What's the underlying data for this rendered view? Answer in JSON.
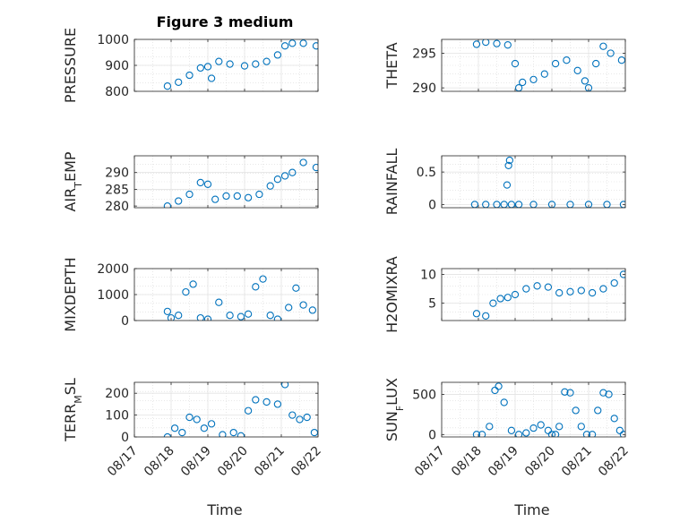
{
  "figure": {
    "title": "Figure 3 medium",
    "xlabel": "Time",
    "marker_color": "#0072BD"
  },
  "chart_data": [
    {
      "type": "scatter",
      "ylabel": "PRESSURE",
      "ylabel_parts": [
        {
          "t": "PRESSURE"
        }
      ],
      "xlim": [
        0,
        5
      ],
      "ylim": [
        800,
        1000
      ],
      "yticks": [
        800,
        900,
        1000
      ],
      "xticks": [
        0,
        1,
        2,
        3,
        4,
        5
      ],
      "xticklabels": [
        "08/17",
        "08/18",
        "08/19",
        "08/20",
        "08/21",
        "08/22"
      ],
      "grid": true,
      "x": [
        0.9,
        1.2,
        1.5,
        1.8,
        2.0,
        2.1,
        2.3,
        2.6,
        3.0,
        3.3,
        3.6,
        3.9,
        4.1,
        4.3,
        4.6,
        4.95
      ],
      "y": [
        820,
        835,
        862,
        890,
        895,
        850,
        915,
        905,
        898,
        905,
        915,
        940,
        975,
        985,
        985,
        975
      ]
    },
    {
      "type": "scatter",
      "ylabel": "THETA",
      "ylabel_parts": [
        {
          "t": "THETA"
        }
      ],
      "xlim": [
        0,
        5
      ],
      "ylim": [
        289.5,
        297
      ],
      "yticks": [
        290,
        295
      ],
      "xticks": [
        0,
        1,
        2,
        3,
        4,
        5
      ],
      "xticklabels": [
        "08/17",
        "08/18",
        "08/19",
        "08/20",
        "08/21",
        "08/22"
      ],
      "grid": true,
      "x": [
        0.95,
        1.2,
        1.5,
        1.8,
        2.0,
        2.1,
        2.2,
        2.5,
        2.8,
        3.1,
        3.4,
        3.7,
        3.9,
        4.0,
        4.2,
        4.4,
        4.6,
        4.9
      ],
      "y": [
        296.3,
        296.6,
        296.4,
        296.2,
        293.5,
        290.0,
        290.8,
        291.2,
        292.0,
        293.5,
        294.0,
        292.5,
        291.0,
        290.0,
        293.5,
        296.0,
        295.0,
        294.0
      ]
    },
    {
      "type": "scatter",
      "ylabel": "AIR_TEMP",
      "ylabel_parts": [
        {
          "t": "AIR"
        },
        {
          "t": "T",
          "sub": true
        },
        {
          "t": "EMP"
        }
      ],
      "xlim": [
        0,
        5
      ],
      "ylim": [
        279.5,
        295
      ],
      "yticks": [
        280,
        285,
        290
      ],
      "xticks": [
        0,
        1,
        2,
        3,
        4,
        5
      ],
      "xticklabels": [
        "08/17",
        "08/18",
        "08/19",
        "08/20",
        "08/21",
        "08/22"
      ],
      "grid": true,
      "x": [
        0.9,
        1.2,
        1.5,
        1.8,
        2.0,
        2.2,
        2.5,
        2.8,
        3.1,
        3.4,
        3.7,
        3.9,
        4.1,
        4.3,
        4.6,
        4.95
      ],
      "y": [
        280.0,
        281.5,
        283.5,
        287.0,
        286.5,
        282.0,
        283.0,
        283.0,
        282.5,
        283.5,
        286.0,
        288.0,
        289.0,
        290.0,
        293.0,
        291.5
      ]
    },
    {
      "type": "scatter",
      "ylabel": "RAINFALL",
      "ylabel_parts": [
        {
          "t": "RAINFALL"
        }
      ],
      "xlim": [
        0,
        5
      ],
      "ylim": [
        -0.05,
        0.75
      ],
      "yticks": [
        0,
        0.5
      ],
      "xticks": [
        0,
        1,
        2,
        3,
        4,
        5
      ],
      "xticklabels": [
        "08/17",
        "08/18",
        "08/19",
        "08/20",
        "08/21",
        "08/22"
      ],
      "grid": true,
      "x": [
        0.9,
        1.2,
        1.5,
        1.7,
        1.78,
        1.82,
        1.85,
        1.9,
        2.1,
        2.5,
        3.0,
        3.5,
        4.0,
        4.5,
        4.95
      ],
      "y": [
        0,
        0,
        0,
        0,
        0.3,
        0.6,
        0.68,
        0,
        0,
        0,
        0,
        0,
        0,
        0,
        0
      ]
    },
    {
      "type": "scatter",
      "ylabel": "MIXDEPTH",
      "ylabel_parts": [
        {
          "t": "MIXDEPTH"
        }
      ],
      "xlim": [
        0,
        5
      ],
      "ylim": [
        0,
        2000
      ],
      "yticks": [
        0,
        1000,
        2000
      ],
      "xticks": [
        0,
        1,
        2,
        3,
        4,
        5
      ],
      "xticklabels": [
        "08/17",
        "08/18",
        "08/19",
        "08/20",
        "08/21",
        "08/22"
      ],
      "grid": true,
      "x": [
        0.9,
        1.0,
        1.2,
        1.4,
        1.6,
        1.8,
        2.0,
        2.3,
        2.6,
        2.9,
        3.1,
        3.3,
        3.5,
        3.7,
        3.9,
        4.2,
        4.4,
        4.6,
        4.85
      ],
      "y": [
        350,
        100,
        200,
        1100,
        1400,
        100,
        50,
        700,
        200,
        150,
        250,
        1300,
        1600,
        200,
        50,
        500,
        1250,
        600,
        400
      ]
    },
    {
      "type": "scatter",
      "ylabel": "H2OMIXRA",
      "ylabel_parts": [
        {
          "t": "H2OMIXRA"
        }
      ],
      "xlim": [
        0,
        5
      ],
      "ylim": [
        2,
        11
      ],
      "yticks": [
        5,
        10
      ],
      "xticks": [
        0,
        1,
        2,
        3,
        4,
        5
      ],
      "xticklabels": [
        "08/17",
        "08/18",
        "08/19",
        "08/20",
        "08/21",
        "08/22"
      ],
      "grid": true,
      "x": [
        0.95,
        1.2,
        1.4,
        1.6,
        1.8,
        2.0,
        2.3,
        2.6,
        2.9,
        3.2,
        3.5,
        3.8,
        4.1,
        4.4,
        4.7,
        4.95
      ],
      "y": [
        3.2,
        2.8,
        5.0,
        5.8,
        6.0,
        6.5,
        7.5,
        8.0,
        7.8,
        6.8,
        7.0,
        7.2,
        6.8,
        7.5,
        8.5,
        10.0
      ]
    },
    {
      "type": "scatter",
      "ylabel": "TERR_MSL",
      "ylabel_parts": [
        {
          "t": "TERR"
        },
        {
          "t": "M",
          "sub": true
        },
        {
          "t": "SL"
        }
      ],
      "xlim": [
        0,
        5
      ],
      "ylim": [
        0,
        250
      ],
      "yticks": [
        0,
        100,
        200
      ],
      "xticks": [
        0,
        1,
        2,
        3,
        4,
        5
      ],
      "xticklabels": [
        "08/17",
        "08/18",
        "08/19",
        "08/20",
        "08/21",
        "08/22"
      ],
      "grid": true,
      "x": [
        0.9,
        1.1,
        1.3,
        1.5,
        1.7,
        1.9,
        2.1,
        2.4,
        2.7,
        2.9,
        3.1,
        3.3,
        3.6,
        3.9,
        4.1,
        4.3,
        4.5,
        4.7,
        4.9
      ],
      "y": [
        0,
        40,
        20,
        90,
        80,
        40,
        60,
        10,
        20,
        5,
        120,
        170,
        160,
        150,
        240,
        100,
        80,
        90,
        20
      ]
    },
    {
      "type": "scatter",
      "ylabel": "SUN_FLUX",
      "ylabel_parts": [
        {
          "t": "SUN"
        },
        {
          "t": "F",
          "sub": true
        },
        {
          "t": "LUX"
        }
      ],
      "xlim": [
        0,
        5
      ],
      "ylim": [
        -30,
        650
      ],
      "yticks": [
        0,
        500
      ],
      "xticks": [
        0,
        1,
        2,
        3,
        4,
        5
      ],
      "xticklabels": [
        "08/17",
        "08/18",
        "08/19",
        "08/20",
        "08/21",
        "08/22"
      ],
      "grid": true,
      "x": [
        0.95,
        1.1,
        1.3,
        1.45,
        1.55,
        1.7,
        1.9,
        2.1,
        2.3,
        2.5,
        2.7,
        2.9,
        3.0,
        3.1,
        3.2,
        3.35,
        3.5,
        3.65,
        3.8,
        3.95,
        4.1,
        4.25,
        4.4,
        4.55,
        4.7,
        4.85,
        4.95
      ],
      "y": [
        0,
        0,
        100,
        550,
        600,
        400,
        50,
        0,
        20,
        80,
        120,
        50,
        0,
        0,
        100,
        530,
        520,
        300,
        100,
        0,
        0,
        300,
        520,
        500,
        200,
        50,
        0
      ]
    }
  ]
}
